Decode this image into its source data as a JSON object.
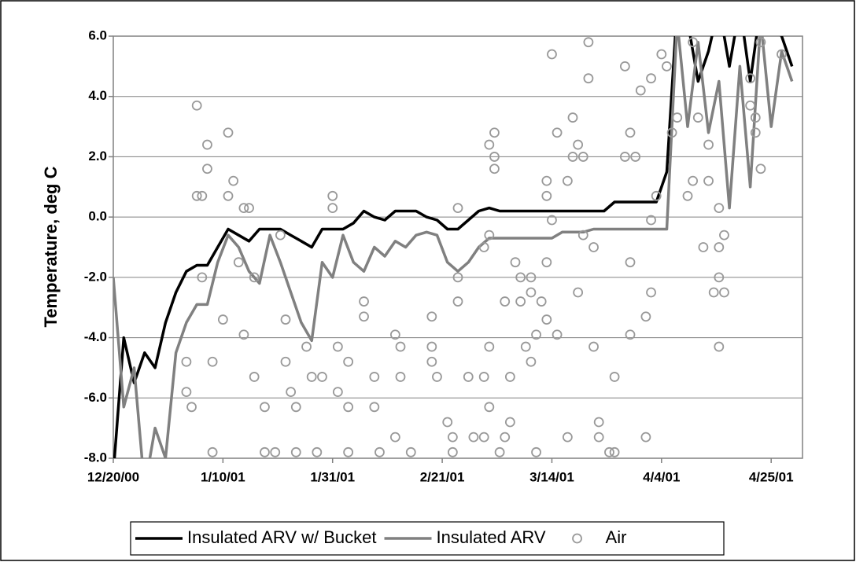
{
  "chart_data": {
    "type": "line",
    "y_label": "Temperature, deg C",
    "xlim": [
      "12/20/00",
      "5/1/01"
    ],
    "xticks": [
      "12/20/00",
      "1/10/01",
      "1/31/01",
      "2/21/01",
      "3/14/01",
      "4/4/01",
      "4/25/01"
    ],
    "ylim": [
      -8,
      6
    ],
    "yticks": [
      {
        "value": -8,
        "label": "-8.0"
      },
      {
        "value": -6,
        "label": "-6.0"
      },
      {
        "value": -4,
        "label": "-4.0"
      },
      {
        "value": -2,
        "label": "-2.0"
      },
      {
        "value": 0,
        "label": "0.0"
      },
      {
        "value": 2,
        "label": "2.0"
      },
      {
        "value": 4,
        "label": "4.0"
      },
      {
        "value": 6,
        "label": "6.0"
      }
    ],
    "grid": true,
    "legend": "bottom",
    "x": [
      "12/20/00",
      "12/22/00",
      "12/24/00",
      "12/26/00",
      "12/28/00",
      "12/30/00",
      "1/1/01",
      "1/3/01",
      "1/5/01",
      "1/7/01",
      "1/9/01",
      "1/11/01",
      "1/13/01",
      "1/15/01",
      "1/17/01",
      "1/19/01",
      "1/21/01",
      "1/23/01",
      "1/25/01",
      "1/27/01",
      "1/29/01",
      "1/31/01",
      "2/2/01",
      "2/4/01",
      "2/6/01",
      "2/8/01",
      "2/10/01",
      "2/12/01",
      "2/14/01",
      "2/16/01",
      "2/18/01",
      "2/20/01",
      "2/22/01",
      "2/24/01",
      "2/26/01",
      "2/28/01",
      "3/2/01",
      "3/4/01",
      "3/6/01",
      "3/8/01",
      "3/10/01",
      "3/12/01",
      "3/14/01",
      "3/16/01",
      "3/18/01",
      "3/20/01",
      "3/22/01",
      "3/24/01",
      "3/26/01",
      "3/28/01",
      "3/30/01",
      "4/1/01",
      "4/3/01",
      "4/5/01",
      "4/7/01",
      "4/9/01",
      "4/11/01",
      "4/13/01",
      "4/15/01",
      "4/17/01",
      "4/19/01",
      "4/21/01",
      "4/23/01",
      "4/25/01",
      "4/27/01",
      "4/29/01"
    ],
    "series": [
      {
        "name": "Insulated ARV w/ Bucket",
        "color": "#000000",
        "type": "line",
        "values": [
          -8.5,
          -4.0,
          -5.5,
          -4.5,
          -5.0,
          -3.5,
          -2.5,
          -1.8,
          -1.6,
          -1.6,
          -1.0,
          -0.4,
          -0.6,
          -0.8,
          -0.4,
          -0.4,
          -0.4,
          -0.6,
          -0.8,
          -1.0,
          -0.4,
          -0.4,
          -0.4,
          -0.2,
          0.2,
          0.0,
          -0.1,
          0.2,
          0.2,
          0.2,
          0.0,
          -0.1,
          -0.4,
          -0.4,
          -0.1,
          0.2,
          0.3,
          0.2,
          0.2,
          0.2,
          0.2,
          0.2,
          0.2,
          0.2,
          0.2,
          0.2,
          0.2,
          0.2,
          0.5,
          0.5,
          0.5,
          0.5,
          0.5,
          1.5,
          7,
          6.5,
          4.5,
          5.5,
          7,
          5.0,
          7,
          4.5,
          7,
          6.5,
          6,
          5.0
        ]
      },
      {
        "name": "Insulated ARV",
        "color": "#808080",
        "type": "line",
        "values": [
          -2,
          -6.3,
          -5.0,
          -9,
          -7,
          -8,
          -4.5,
          -3.5,
          -2.9,
          -2.9,
          -1.5,
          -0.6,
          -1.0,
          -1.8,
          -2.2,
          -0.6,
          -1.5,
          -2.5,
          -3.5,
          -4.1,
          -1.5,
          -2.0,
          -0.6,
          -1.5,
          -1.8,
          -1.0,
          -1.3,
          -0.8,
          -1.0,
          -0.6,
          -0.5,
          -0.6,
          -1.5,
          -1.8,
          -1.5,
          -1.0,
          -0.7,
          -0.7,
          -0.7,
          -0.7,
          -0.7,
          -0.7,
          -0.7,
          -0.5,
          -0.5,
          -0.5,
          -0.4,
          -0.4,
          -0.4,
          -0.4,
          -0.4,
          -0.4,
          -0.4,
          -0.4,
          6.5,
          3.0,
          5.8,
          2.8,
          4.5,
          0.3,
          5.0,
          1.0,
          6.5,
          3.0,
          5.5,
          4.5
        ]
      },
      {
        "name": "Air",
        "color": "#999999",
        "type": "scatter",
        "x": [
          "1/5/01",
          "1/5/01",
          "1/6/01",
          "1/3/01",
          "1/3/01",
          "1/4/01",
          "1/7/01",
          "1/7/01",
          "1/8/01",
          "1/8/01",
          "1/6/01",
          "1/10/01",
          "1/11/01",
          "1/11/01",
          "1/12/01",
          "1/13/01",
          "1/14/01",
          "1/14/01",
          "1/15/01",
          "1/16/01",
          "1/16/01",
          "1/18/01",
          "1/18/01",
          "1/20/01",
          "1/21/01",
          "1/22/01",
          "1/22/01",
          "1/23/01",
          "1/24/01",
          "1/24/01",
          "1/26/01",
          "1/27/01",
          "1/28/01",
          "1/29/01",
          "1/31/01",
          "1/31/01",
          "2/1/01",
          "2/1/01",
          "2/3/01",
          "2/3/01",
          "2/3/01",
          "2/6/01",
          "2/6/01",
          "2/8/01",
          "2/8/01",
          "2/9/01",
          "2/12/01",
          "2/12/01",
          "2/13/01",
          "2/13/01",
          "2/15/01",
          "2/19/01",
          "2/19/01",
          "2/19/01",
          "2/20/01",
          "2/22/01",
          "2/23/01",
          "2/23/01",
          "2/24/01",
          "2/24/01",
          "2/24/01",
          "2/26/01",
          "2/27/01",
          "3/1/01",
          "3/1/01",
          "3/1/01",
          "3/2/01",
          "3/2/01",
          "3/2/01",
          "3/3/01",
          "3/3/01",
          "3/3/01",
          "3/2/01",
          "3/4/01",
          "3/5/01",
          "3/5/01",
          "3/6/01",
          "3/6/01",
          "3/7/01",
          "3/8/01",
          "3/8/01",
          "3/9/01",
          "3/10/01",
          "3/10/01",
          "3/10/01",
          "3/11/01",
          "3/11/01",
          "3/12/01",
          "3/13/01",
          "3/13/01",
          "3/13/01",
          "3/13/01",
          "3/14/01",
          "3/14/01",
          "3/15/01",
          "3/15/01",
          "3/17/01",
          "3/17/01",
          "3/18/01",
          "3/18/01",
          "3/19/01",
          "3/19/01",
          "3/20/01",
          "3/20/01",
          "3/21/01",
          "3/21/01",
          "3/22/01",
          "3/22/01",
          "3/23/01",
          "3/23/01",
          "3/25/01",
          "3/26/01",
          "3/26/01",
          "3/28/01",
          "3/28/01",
          "3/29/01",
          "3/29/01",
          "3/29/01",
          "3/30/01",
          "3/31/01",
          "4/1/01",
          "4/1/01",
          "4/2/01",
          "4/2/01",
          "4/2/01",
          "4/3/01",
          "4/4/01",
          "4/5/01",
          "4/6/01",
          "4/7/01",
          "4/9/01",
          "4/10/01",
          "4/10/01",
          "4/11/01",
          "4/12/01",
          "4/13/01",
          "4/13/01",
          "4/14/01",
          "4/15/01",
          "4/15/01",
          "4/15/01",
          "4/15/01",
          "4/16/01",
          "4/16/01",
          "4/21/01",
          "4/21/01",
          "4/22/01",
          "4/22/01",
          "4/23/01",
          "4/23/01",
          "4/27/01"
        ],
        "values": [
          3.7,
          0.7,
          0.7,
          -4.8,
          -5.8,
          -6.3,
          2.4,
          1.6,
          -4.8,
          -7.8,
          -2.0,
          -3.4,
          2.8,
          0.7,
          1.2,
          -1.5,
          -3.9,
          0.3,
          0.3,
          -2.0,
          -5.3,
          -7.8,
          -6.3,
          -7.8,
          -0.6,
          -3.4,
          -4.8,
          -5.8,
          -7.8,
          -6.3,
          -4.3,
          -5.3,
          -7.8,
          -5.3,
          0.7,
          0.3,
          -4.3,
          -5.8,
          -7.8,
          -4.8,
          -6.3,
          -3.3,
          -2.8,
          -5.3,
          -6.3,
          -7.8,
          -7.3,
          -3.9,
          -4.3,
          -5.3,
          -7.8,
          -4.8,
          -3.3,
          -4.3,
          -5.3,
          -6.8,
          -7.3,
          -7.8,
          0.3,
          -2.0,
          -2.8,
          -5.3,
          -7.3,
          -5.3,
          -7.3,
          -1.0,
          -0.6,
          -4.3,
          2.4,
          2.0,
          1.6,
          2.8,
          -6.3,
          -7.8,
          -2.8,
          -7.3,
          -5.3,
          -6.8,
          -1.5,
          -2.0,
          -2.8,
          -4.3,
          -2.5,
          -4.8,
          -2.0,
          -7.8,
          -3.9,
          -2.8,
          -3.4,
          -1.5,
          1.2,
          0.7,
          5.4,
          -0.1,
          2.8,
          -3.9,
          -7.3,
          1.2,
          2.0,
          3.3,
          -2.5,
          2.4,
          2.0,
          -0.6,
          5.8,
          4.6,
          -1.0,
          -4.3,
          -6.8,
          -7.3,
          -7.8,
          -7.8,
          -5.3,
          2.0,
          5.0,
          -1.5,
          -3.9,
          2.8,
          2.0,
          4.2,
          -7.3,
          -3.3,
          -0.1,
          4.6,
          -2.5,
          0.7,
          5.4,
          5.0,
          2.8,
          3.3,
          0.7,
          5.8,
          1.2,
          3.3,
          -1.0,
          1.2,
          2.4,
          -2.5,
          -4.3,
          -1.0,
          0.3,
          -2.0,
          -2.5,
          -0.6,
          4.6,
          3.7,
          3.3,
          2.8,
          1.6,
          5.8,
          5.4
        ]
      }
    ]
  }
}
